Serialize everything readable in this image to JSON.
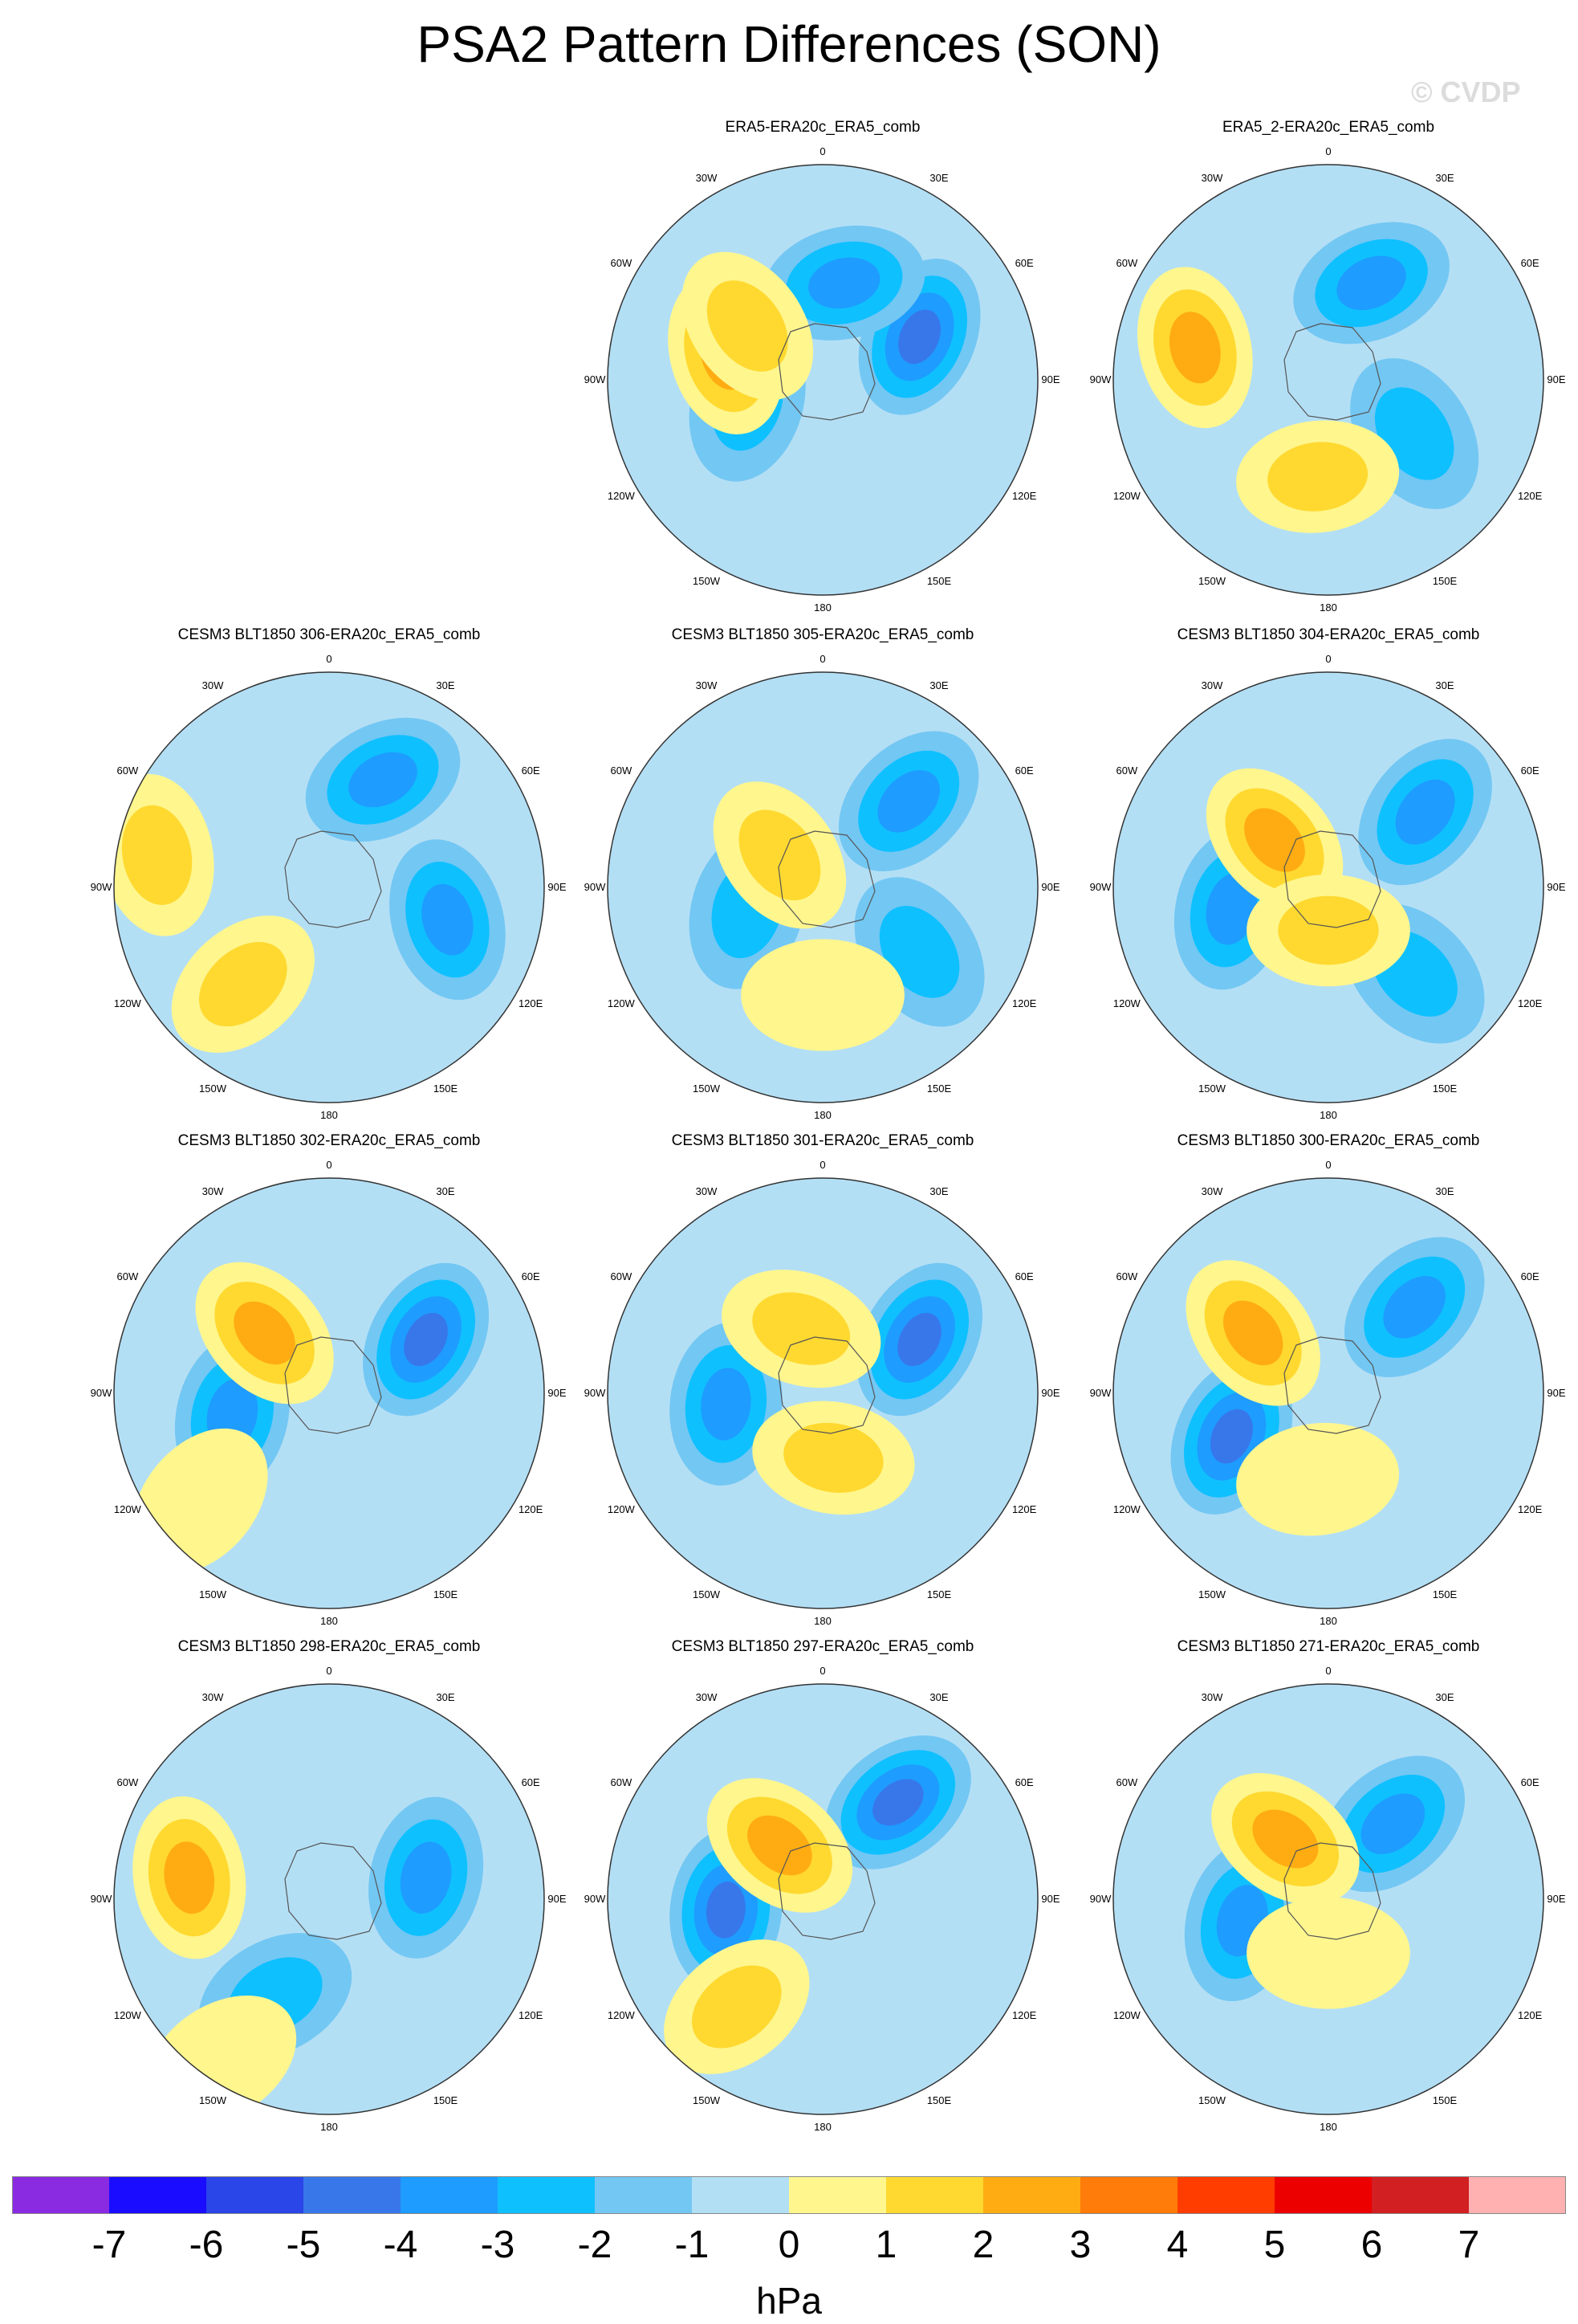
{
  "title": "PSA2 Pattern Differences (SON)",
  "watermark": "© CVDP",
  "lon_labels": [
    "0",
    "30E",
    "60E",
    "90E",
    "120E",
    "150E",
    "180",
    "150W",
    "120W",
    "90W",
    "60W",
    "30W"
  ],
  "panels": [
    {
      "title": "ERA5-ERA20c_ERA5_comb",
      "hi": [
        [
          -0.45,
          0.12,
          2.6
        ],
        [
          -0.35,
          0.25,
          1.2
        ]
      ],
      "lo": [
        [
          0.45,
          0.2,
          -3.4
        ],
        [
          0.1,
          0.45,
          -2.6
        ],
        [
          -0.35,
          -0.1,
          -1.2
        ]
      ]
    },
    {
      "title": "ERA5_2-ERA20c_ERA5_comb",
      "hi": [
        [
          -0.62,
          0.15,
          2.4
        ],
        [
          -0.05,
          -0.45,
          1.6
        ]
      ],
      "lo": [
        [
          0.4,
          -0.25,
          -1.4
        ],
        [
          0.2,
          0.45,
          -2.2
        ]
      ]
    },
    {
      "title": "CESM3 BLT1850 306-ERA20c_ERA5_comb",
      "hi": [
        [
          -0.8,
          0.15,
          1.8
        ],
        [
          -0.4,
          -0.45,
          1.1
        ]
      ],
      "lo": [
        [
          0.55,
          -0.15,
          -2.8
        ],
        [
          0.25,
          0.5,
          -2.6
        ]
      ]
    },
    {
      "title": "CESM3 BLT1850 305-ERA20c_ERA5_comb",
      "hi": [
        [
          -0.2,
          0.15,
          2.0
        ],
        [
          0.0,
          -0.5,
          1.0
        ]
      ],
      "lo": [
        [
          0.4,
          0.4,
          -2.4
        ],
        [
          -0.35,
          -0.1,
          -2.0
        ],
        [
          0.45,
          -0.3,
          -1.2
        ]
      ]
    },
    {
      "title": "CESM3 BLT1850 304-ERA20c_ERA5_comb",
      "hi": [
        [
          -0.25,
          0.22,
          2.6
        ],
        [
          0.0,
          -0.2,
          1.2
        ]
      ],
      "lo": [
        [
          0.45,
          0.35,
          -2.6
        ],
        [
          -0.45,
          -0.1,
          -2.4
        ],
        [
          0.4,
          -0.4,
          -1.2
        ]
      ]
    },
    {
      "title": "CESM3 BLT1850 302-ERA20c_ERA5_comb",
      "hi": [
        [
          -0.3,
          0.28,
          2.6
        ],
        [
          -0.6,
          -0.5,
          1.0
        ]
      ],
      "lo": [
        [
          0.45,
          0.25,
          -3.6
        ],
        [
          -0.45,
          -0.1,
          -2.2
        ]
      ]
    },
    {
      "title": "CESM3 BLT1850 301-ERA20c_ERA5_comb",
      "hi": [
        [
          -0.1,
          0.3,
          1.8
        ],
        [
          0.05,
          -0.3,
          1.1
        ]
      ],
      "lo": [
        [
          0.45,
          0.25,
          -3.4
        ],
        [
          -0.45,
          -0.05,
          -2.4
        ]
      ]
    },
    {
      "title": "CESM3 BLT1850 300-ERA20c_ERA5_comb",
      "hi": [
        [
          -0.35,
          0.28,
          2.8
        ],
        [
          -0.05,
          -0.4,
          1.0
        ]
      ],
      "lo": [
        [
          0.4,
          0.4,
          -2.8
        ],
        [
          -0.45,
          -0.2,
          -3.2
        ]
      ]
    },
    {
      "title": "CESM3 BLT1850 298-ERA20c_ERA5_comb",
      "hi": [
        [
          -0.65,
          0.1,
          2.7
        ],
        [
          -0.5,
          -0.75,
          1.0
        ]
      ],
      "lo": [
        [
          0.45,
          0.1,
          -3.0
        ],
        [
          -0.25,
          -0.45,
          -2.0
        ]
      ]
    },
    {
      "title": "CESM3 BLT1850 297-ERA20c_ERA5_comb",
      "hi": [
        [
          -0.2,
          0.25,
          2.6
        ],
        [
          -0.4,
          -0.5,
          1.4
        ]
      ],
      "lo": [
        [
          0.35,
          0.45,
          -3.6
        ],
        [
          -0.45,
          -0.05,
          -3.6
        ]
      ]
    },
    {
      "title": "CESM3 BLT1850 271-ERA20c_ERA5_comb",
      "hi": [
        [
          -0.2,
          0.28,
          2.8
        ],
        [
          0.0,
          -0.25,
          1.0
        ]
      ],
      "lo": [
        [
          0.3,
          0.35,
          -2.8
        ],
        [
          -0.4,
          -0.1,
          -2.4
        ]
      ]
    }
  ],
  "colorbar": {
    "colors": [
      "#8a2be2",
      "#1a0dff",
      "#2a45e8",
      "#3877ea",
      "#1e9cff",
      "#0fc0ff",
      "#73c7f3",
      "#b3dff5",
      "#fff68e",
      "#ffd930",
      "#ffac12",
      "#ff7b0a",
      "#ff3d00",
      "#ec0000",
      "#d21f22",
      "#ffb1b1"
    ],
    "labels": [
      "-7",
      "-6",
      "-5",
      "-4",
      "-3",
      "-2",
      "-1",
      "0",
      "1",
      "2",
      "3",
      "4",
      "5",
      "6",
      "7"
    ],
    "units": "hPa"
  }
}
